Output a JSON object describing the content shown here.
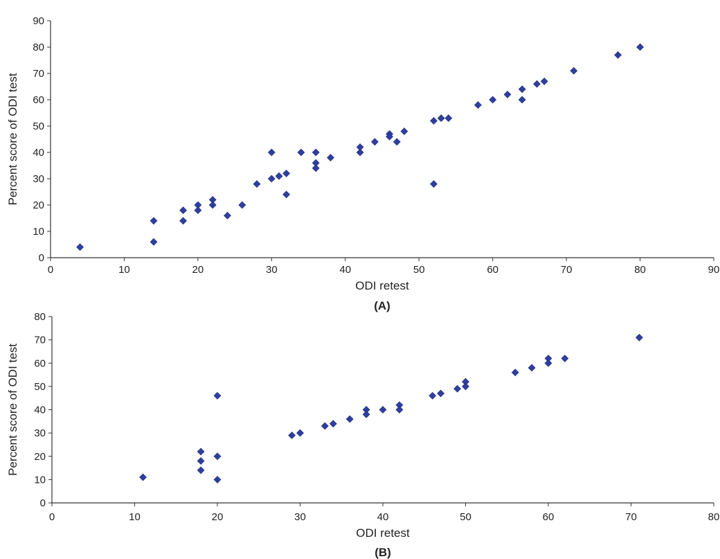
{
  "chart_data": [
    {
      "type": "scatter",
      "panel_label": "(A)",
      "xlabel": "ODI retest",
      "ylabel": "Percent score of ODI test",
      "xlim": [
        0,
        90
      ],
      "ylim": [
        0,
        90
      ],
      "xticks": [
        0,
        10,
        20,
        30,
        40,
        50,
        60,
        70,
        80,
        90
      ],
      "yticks": [
        0,
        10,
        20,
        30,
        40,
        50,
        60,
        70,
        80,
        90
      ],
      "grid": false,
      "marker": "diamond",
      "color": "#2e3f9e",
      "points": [
        [
          4,
          4
        ],
        [
          14,
          14
        ],
        [
          14,
          6
        ],
        [
          18,
          18
        ],
        [
          18,
          14
        ],
        [
          20,
          20
        ],
        [
          20,
          18
        ],
        [
          22,
          22
        ],
        [
          22,
          20
        ],
        [
          24,
          16
        ],
        [
          26,
          20
        ],
        [
          28,
          28
        ],
        [
          30,
          40
        ],
        [
          30,
          30
        ],
        [
          31,
          31
        ],
        [
          32,
          32
        ],
        [
          32,
          24
        ],
        [
          34,
          40
        ],
        [
          36,
          40
        ],
        [
          36,
          36
        ],
        [
          36,
          34
        ],
        [
          38,
          38
        ],
        [
          42,
          42
        ],
        [
          42,
          40
        ],
        [
          44,
          44
        ],
        [
          46,
          47
        ],
        [
          46,
          46
        ],
        [
          47,
          44
        ],
        [
          48,
          48
        ],
        [
          52,
          52
        ],
        [
          52,
          28
        ],
        [
          53,
          53
        ],
        [
          54,
          53
        ],
        [
          58,
          58
        ],
        [
          60,
          60
        ],
        [
          62,
          62
        ],
        [
          64,
          64
        ],
        [
          64,
          60
        ],
        [
          66,
          66
        ],
        [
          67,
          67
        ],
        [
          71,
          71
        ],
        [
          77,
          77
        ],
        [
          80,
          80
        ]
      ]
    },
    {
      "type": "scatter",
      "panel_label": "(B)",
      "xlabel": "ODI retest",
      "ylabel": "Percent score of ODI test",
      "xlim": [
        0,
        80
      ],
      "ylim": [
        0,
        80
      ],
      "xticks": [
        0,
        10,
        20,
        30,
        40,
        50,
        60,
        70,
        80
      ],
      "yticks": [
        0,
        10,
        20,
        30,
        40,
        50,
        60,
        70,
        80
      ],
      "grid": false,
      "marker": "diamond",
      "color": "#2e3f9e",
      "points": [
        [
          11,
          11
        ],
        [
          18,
          22
        ],
        [
          18,
          18
        ],
        [
          18,
          14
        ],
        [
          20,
          46
        ],
        [
          20,
          20
        ],
        [
          20,
          10
        ],
        [
          29,
          29
        ],
        [
          30,
          30
        ],
        [
          33,
          33
        ],
        [
          34,
          34
        ],
        [
          36,
          36
        ],
        [
          38,
          40
        ],
        [
          38,
          38
        ],
        [
          40,
          40
        ],
        [
          42,
          42
        ],
        [
          42,
          40
        ],
        [
          46,
          46
        ],
        [
          47,
          47
        ],
        [
          49,
          49
        ],
        [
          50,
          52
        ],
        [
          50,
          50
        ],
        [
          56,
          56
        ],
        [
          58,
          58
        ],
        [
          60,
          62
        ],
        [
          60,
          60
        ],
        [
          62,
          62
        ],
        [
          71,
          71
        ]
      ]
    }
  ]
}
